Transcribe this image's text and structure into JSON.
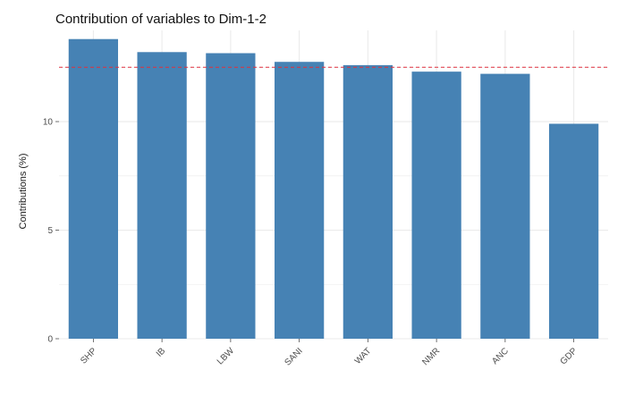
{
  "chart_data": {
    "type": "bar",
    "title": "Contribution of variables to Dim-1-2",
    "xlabel": "",
    "ylabel": "Contributions (%)",
    "categories": [
      "SHP",
      "IB",
      "LBW",
      "SANI",
      "WAT",
      "NMR",
      "ANC",
      "GDP"
    ],
    "values": [
      13.8,
      13.2,
      13.15,
      12.75,
      12.6,
      12.3,
      12.2,
      9.9
    ],
    "reference_line": 12.5,
    "ylim": [
      0,
      14.2
    ],
    "yticks": [
      0,
      5,
      10
    ],
    "grid": true,
    "legend": "none",
    "colors": {
      "bar": "#4682B4",
      "reference_line": "#E0303C",
      "grid": "#EBEBEB"
    }
  }
}
